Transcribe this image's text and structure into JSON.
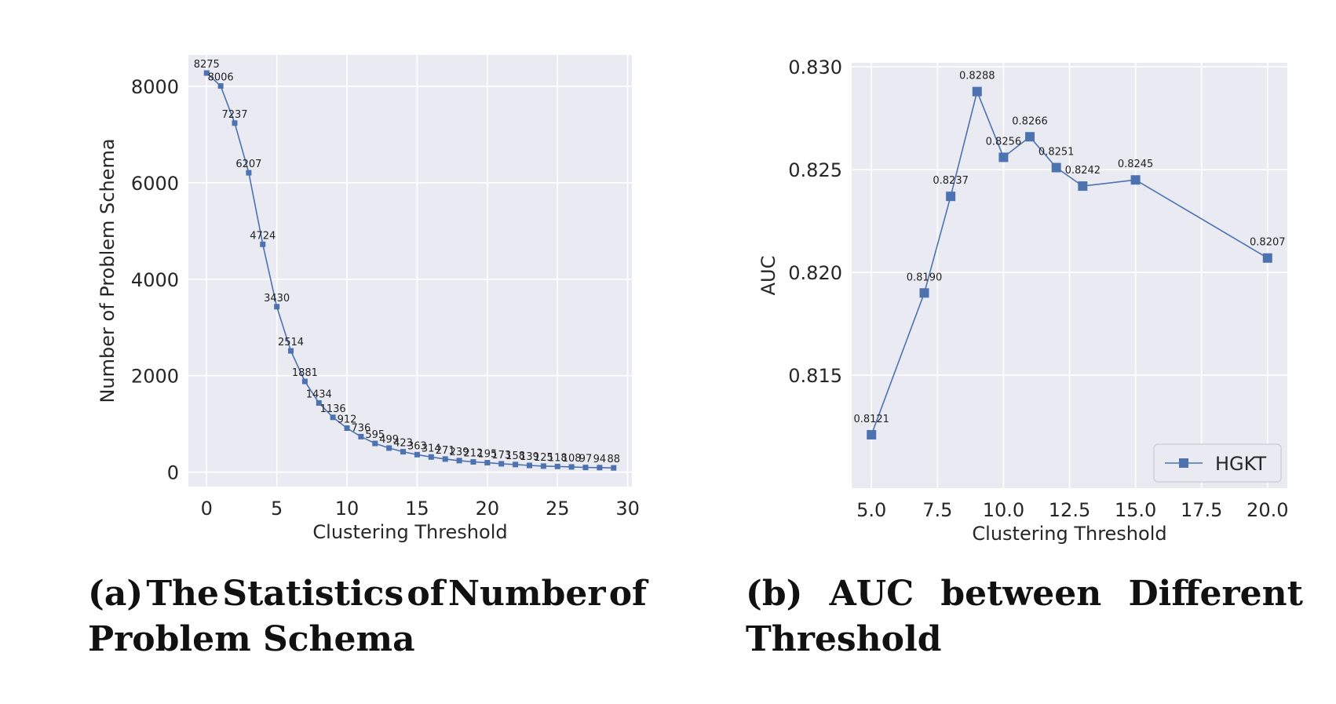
{
  "chart_data": [
    {
      "type": "line",
      "xlabel": "Clustering Threshold",
      "ylabel": "Number of Problem Schema",
      "xlim": [
        -1.3,
        30.3
      ],
      "ylim": [
        -300,
        8650
      ],
      "xticks": [
        0,
        5,
        10,
        15,
        20,
        25,
        30
      ],
      "yticks": [
        0,
        2000,
        4000,
        6000,
        8000
      ],
      "xtick_labels": [
        "0",
        "5",
        "10",
        "15",
        "20",
        "25",
        "30"
      ],
      "ytick_labels": [
        "0",
        "2000",
        "4000",
        "6000",
        "8000"
      ],
      "grid": true,
      "color": "#4c72b0",
      "x": [
        0,
        1,
        2,
        3,
        4,
        5,
        6,
        7,
        8,
        9,
        10,
        11,
        12,
        13,
        14,
        15,
        16,
        17,
        18,
        19,
        20,
        21,
        22,
        23,
        24,
        25,
        26,
        27,
        28,
        29
      ],
      "y": [
        8275,
        8006,
        7237,
        6207,
        4724,
        3430,
        2514,
        1881,
        1434,
        1136,
        912,
        736,
        595,
        499,
        423,
        363,
        314,
        271,
        239,
        212,
        195,
        173,
        158,
        139,
        125,
        118,
        108,
        97,
        94,
        88
      ],
      "data_labels": [
        "8275",
        "8006",
        "7237",
        "6207",
        "4724",
        "3430",
        "2514",
        "1881",
        "1434",
        "1136",
        "912",
        "736",
        "595",
        "499",
        "423",
        "363",
        "314",
        "271",
        "239",
        "212",
        "195",
        "173",
        "158",
        "139",
        "125",
        "118",
        "108",
        "97",
        "94",
        "88"
      ]
    },
    {
      "type": "line",
      "xlabel": "Clustering Threshold",
      "ylabel": "AUC",
      "xlim": [
        4.25,
        20.75
      ],
      "ylim": [
        0.8095,
        0.8302
      ],
      "xticks": [
        5.0,
        7.5,
        10.0,
        12.5,
        15.0,
        17.5,
        20.0
      ],
      "yticks": [
        0.815,
        0.82,
        0.825,
        0.83
      ],
      "xtick_labels": [
        "5.0",
        "7.5",
        "10.0",
        "12.5",
        "15.0",
        "17.5",
        "20.0"
      ],
      "ytick_labels": [
        "0.815",
        "0.820",
        "0.825",
        "0.830"
      ],
      "grid": true,
      "legend_position": "lower-right",
      "color": "#4c72b0",
      "series": [
        {
          "name": "HGKT",
          "x": [
            5,
            7,
            8,
            9,
            10,
            11,
            12,
            13,
            15,
            20
          ],
          "y": [
            0.8121,
            0.819,
            0.8237,
            0.8288,
            0.8256,
            0.8266,
            0.8251,
            0.8242,
            0.8245,
            0.8207
          ],
          "data_labels": [
            "0.8121",
            "0.8190",
            "0.8237",
            "0.8288",
            "0.8256",
            "0.8266",
            "0.8251",
            "0.8242",
            "0.8245",
            "0.8207"
          ]
        }
      ]
    }
  ],
  "captions": {
    "a_line1": [
      "(a)",
      "The",
      "Statistics",
      "of",
      "Number",
      "of"
    ],
    "a_line2": "Problem Schema",
    "b_line1": [
      "(b)",
      "AUC",
      "between",
      "Different"
    ],
    "b_line2": "Threshold"
  }
}
